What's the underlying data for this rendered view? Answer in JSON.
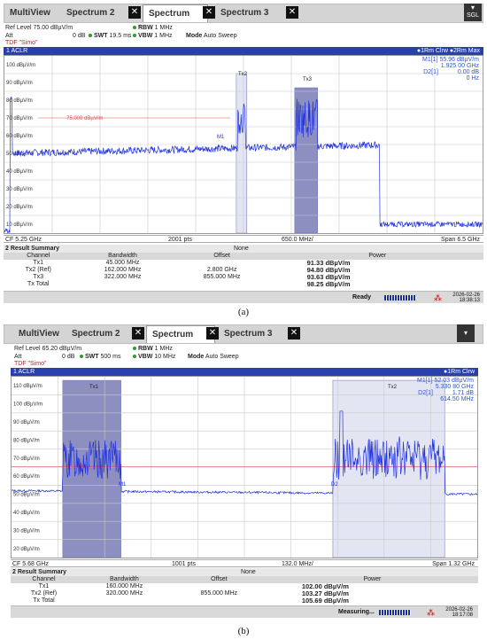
{
  "panels": [
    {
      "caption": "(a)",
      "tabs": [
        "MultiView",
        "Spectrum 2",
        "Spectrum",
        "Spectrum 3"
      ],
      "tab_close": "✕",
      "sgl": "SGL",
      "ref_level": "Ref Level 75.00 dBµV/m",
      "rbw_label": "RBW",
      "rbw_value": "1 MHz",
      "att": "Att",
      "att_value": "0 dB",
      "swt_label": "SWT",
      "swt_value": "19.5 ms",
      "vbw_label": "VBW",
      "vbw_value": "1 MHz",
      "mode_label": "Mode",
      "mode_value": "Auto Sweep",
      "tdf": "TDF \"Simo\"",
      "window": "1 ACLR",
      "window_right": "●1Rm Clrw ●2Rm Max",
      "markers": [
        [
          "M1[1]",
          "55.96 dBµV/m"
        ],
        [
          "",
          "1.925 00 GHz"
        ],
        [
          "D2[1]",
          "0.00 dB"
        ],
        [
          "",
          "0 Hz"
        ]
      ],
      "ylabels": [
        "100 dBµV/m",
        "90 dBµV/m",
        "80 dBµV/m",
        "70 dBµV/m",
        "60 dBµV/m",
        "50 dBµV/m",
        "40 dBµV/m",
        "30 dBµV/m",
        "20 dBµV/m",
        "10 dBµV/m"
      ],
      "limit_label": "75.000 dBµV/m",
      "channel_labels": [
        "Tx2",
        "Tx3",
        "M1"
      ],
      "footer": {
        "cf": "CF 5.25 GHz",
        "pts": "2001 pts",
        "div": "650.0 MHz/",
        "span": "Span 6.5 GHz"
      },
      "summary_title": "2 Result Summary",
      "summary_none": "None",
      "columns": [
        "Channel",
        "Bandwidth",
        "Offset",
        "Power"
      ],
      "rows": [
        [
          "Tx1",
          "45.000 MHz",
          "",
          "91.33 dBµV/m"
        ],
        [
          "Tx2 (Ref)",
          "162.000 MHz",
          "2.800 GHz",
          "94.80 dBµV/m"
        ],
        [
          "Tx3",
          "322.000 MHz",
          "855.000 MHz",
          "93.63 dBµV/m"
        ],
        [
          "Tx Total",
          "",
          "",
          "98.25 dBµV/m"
        ]
      ],
      "status": "Ready",
      "date": "2026-02-26",
      "time": "18:38:13",
      "ref_dbuv": 110,
      "range_db": 100,
      "limit_dbuv": 75
    },
    {
      "caption": "(b)",
      "tabs": [
        "MultiView",
        "Spectrum 2",
        "Spectrum",
        "Spectrum 3"
      ],
      "tab_close": "✕",
      "sgl": "",
      "ref_level": "Ref Level 65.20 dBµV/m",
      "rbw_label": "RBW",
      "rbw_value": "1 MHz",
      "att": "Att",
      "att_value": "0 dB",
      "swt_label": "SWT",
      "swt_value": "500 ms",
      "vbw_label": "VBW",
      "vbw_value": "10 MHz",
      "mode_label": "Mode",
      "mode_value": "Auto Sweep",
      "tdf": "TDF \"Simo\"",
      "window": "1 ACLR",
      "window_right": "●1Rm Clrw",
      "markers": [
        [
          "M1[1]",
          "52.03 dBµV/m"
        ],
        [
          "",
          "5.330 80 GHz"
        ],
        [
          "D2[1]",
          "1.71 dB"
        ],
        [
          "",
          "614.50 MHz"
        ]
      ],
      "ylabels": [
        "110 dBµV/m",
        "100 dBµV/m",
        "90 dBµV/m",
        "80 dBµV/m",
        "70 dBµV/m",
        "60 dBµV/m",
        "50 dBµV/m",
        "40 dBµV/m",
        "30 dBµV/m",
        "20 dBµV/m"
      ],
      "limit_label": "65.200 dBµV/m",
      "channel_labels": [
        "Tx1",
        "Tx2",
        "M1",
        "D2"
      ],
      "footer": {
        "cf": "CF 5.68 GHz",
        "pts": "1001 pts",
        "div": "132.0 MHz/",
        "span": "Span 1.32 GHz"
      },
      "summary_title": "2 Result Summary",
      "summary_none": "None",
      "columns": [
        "Channel",
        "Bandwidth",
        "Offset",
        "Power"
      ],
      "rows": [
        [
          "Tx1",
          "160.000 MHz",
          "",
          "102.00 dBµV/m"
        ],
        [
          "Tx2 (Ref)",
          "320.000 MHz",
          "855.000 MHz",
          "103.27 dBµV/m"
        ],
        [
          "Tx Total",
          "",
          "",
          "105.69 dBµV/m"
        ]
      ],
      "status": "Measuring...",
      "date": "2026-02-26",
      "time": "18:17:08",
      "ref_dbuv": 115,
      "range_db": 100,
      "limit_dbuv": 65.2
    }
  ],
  "colors": {
    "trace": "#2233dd",
    "band_dark": "#8c8fbf",
    "band_light": "#e4e5f3",
    "limit": "#e05050",
    "header_bar": "#2a3fae"
  }
}
